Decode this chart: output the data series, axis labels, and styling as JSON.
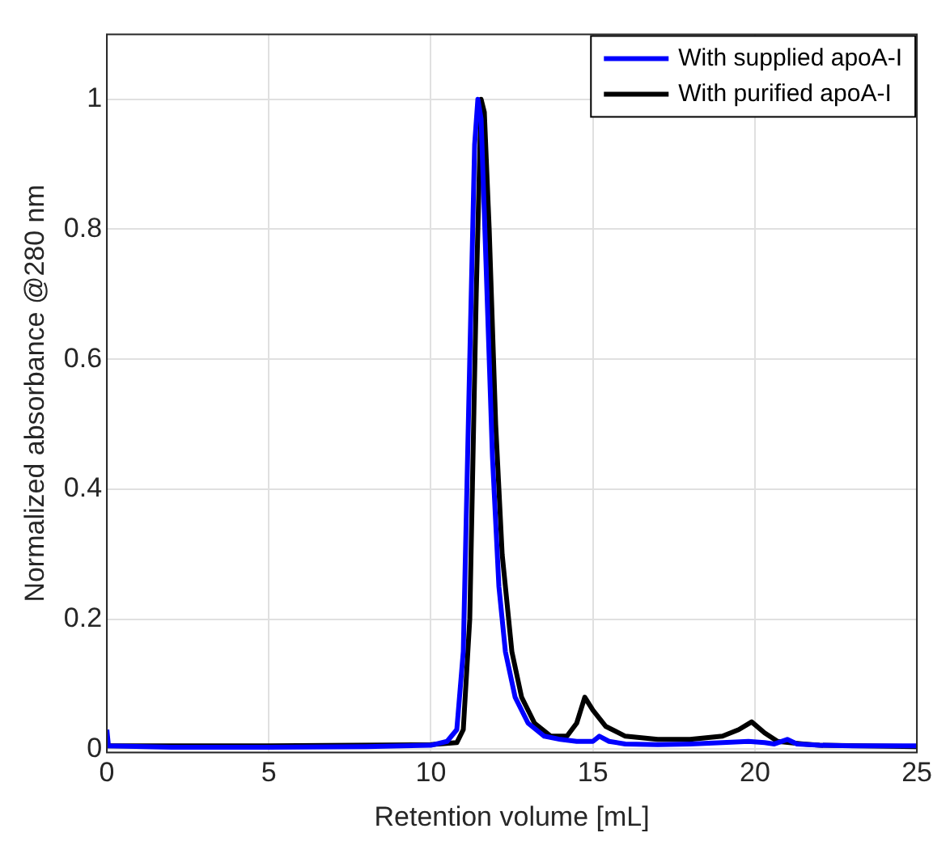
{
  "chart_data": {
    "type": "line",
    "xlabel": "Retention volume [mL]",
    "ylabel": "Normalized absorbance @280 nm",
    "xlim": [
      0,
      25
    ],
    "xticks": [
      0,
      5,
      10,
      15,
      20,
      25
    ],
    "ylim": [
      -0.005,
      1.1
    ],
    "yticks": [
      0,
      0.2,
      0.4,
      0.6,
      0.8,
      1
    ],
    "grid": true,
    "legend": "top right",
    "marker": "none",
    "line_style": "solid",
    "series": [
      {
        "name": "With supplied apoA-I",
        "color": "#0000ff",
        "x": [
          0,
          0.05,
          2,
          5,
          8,
          10,
          10.5,
          10.8,
          11,
          11.2,
          11.35,
          11.45,
          11.55,
          11.7,
          11.9,
          12.1,
          12.3,
          12.6,
          13,
          13.5,
          14,
          14.5,
          15,
          15.2,
          15.5,
          16,
          17,
          18,
          19,
          19.8,
          20.3,
          20.6,
          21,
          21.3,
          22,
          23,
          25
        ],
        "values": [
          0.03,
          0.005,
          0.003,
          0.003,
          0.004,
          0.006,
          0.012,
          0.03,
          0.15,
          0.6,
          0.93,
          1,
          0.97,
          0.75,
          0.45,
          0.25,
          0.15,
          0.08,
          0.04,
          0.02,
          0.015,
          0.012,
          0.012,
          0.02,
          0.012,
          0.008,
          0.007,
          0.008,
          0.01,
          0.012,
          0.01,
          0.008,
          0.015,
          0.008,
          0.006,
          0.005,
          0.005
        ]
      },
      {
        "name": "With purified apoA-I",
        "color": "#000000",
        "x": [
          0,
          5,
          10,
          10.8,
          11,
          11.2,
          11.4,
          11.55,
          11.65,
          11.8,
          12,
          12.2,
          12.5,
          12.8,
          13.2,
          13.7,
          14.2,
          14.5,
          14.75,
          15,
          15.4,
          16,
          17,
          18,
          19,
          19.5,
          19.9,
          20.3,
          20.7,
          21.5,
          22,
          25
        ],
        "values": [
          0.005,
          0.005,
          0.007,
          0.01,
          0.03,
          0.2,
          0.7,
          1,
          0.98,
          0.8,
          0.5,
          0.3,
          0.15,
          0.08,
          0.04,
          0.02,
          0.02,
          0.04,
          0.08,
          0.06,
          0.035,
          0.02,
          0.015,
          0.015,
          0.02,
          0.03,
          0.042,
          0.025,
          0.012,
          0.008,
          0.006,
          0.004
        ]
      }
    ]
  }
}
